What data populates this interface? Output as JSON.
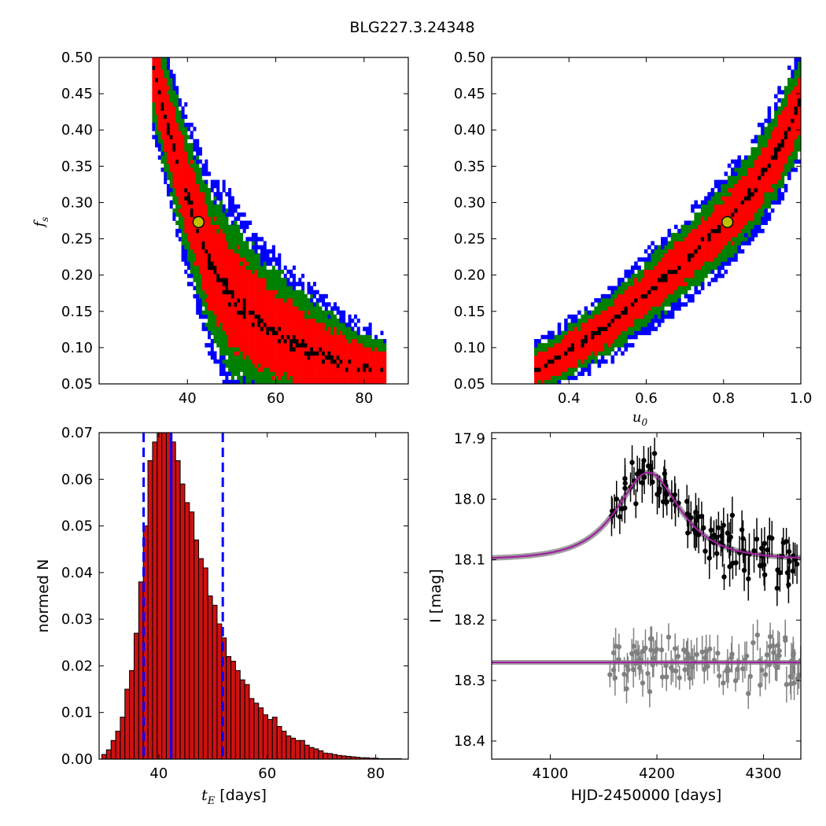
{
  "figure": {
    "title": "BLG227.3.24348"
  },
  "colors": {
    "blue": "#0000ff",
    "green": "#008000",
    "red": "#ff0000",
    "black": "#000000",
    "marker_fill": "#bfbf00",
    "bar_fill": "#cc1111",
    "model": "#a020a0",
    "band": "#888888",
    "gray_points": "#808080"
  },
  "chart_data": [
    {
      "id": "te-fs-density",
      "type": "heatmap",
      "xlabel": "",
      "ylabel": "f",
      "ylabel_sub": "s",
      "xlim": [
        20,
        90
      ],
      "ylim": [
        0.05,
        0.5
      ],
      "xticks": [
        40,
        60,
        80
      ],
      "yticks": [
        0.05,
        0.1,
        0.15,
        0.2,
        0.25,
        0.3,
        0.35,
        0.4,
        0.45,
        0.5
      ],
      "ytick_labels": [
        "0.05",
        "0.10",
        "0.15",
        "0.20",
        "0.25",
        "0.30",
        "0.35",
        "0.40",
        "0.45",
        "0.50"
      ],
      "levels": [
        "blue",
        "green",
        "red",
        "black"
      ],
      "ridge": [
        [
          32,
          0.49
        ],
        [
          35,
          0.42
        ],
        [
          38,
          0.35
        ],
        [
          41,
          0.29
        ],
        [
          45,
          0.22
        ],
        [
          50,
          0.17
        ],
        [
          57,
          0.13
        ],
        [
          66,
          0.1
        ],
        [
          77,
          0.075
        ],
        [
          85,
          0.07
        ]
      ],
      "best_fit": {
        "x": 42.5,
        "y": 0.273
      }
    },
    {
      "id": "u0-fs-density",
      "type": "heatmap",
      "xlabel": "u",
      "xlabel_sub": "0",
      "ylabel": "",
      "xlim": [
        0.2,
        1.0
      ],
      "ylim": [
        0.05,
        0.5
      ],
      "xticks": [
        0.4,
        0.6,
        0.8,
        1.0
      ],
      "xtick_labels": [
        "0.4",
        "0.6",
        "0.8",
        "1.0"
      ],
      "yticks": [
        0.05,
        0.1,
        0.15,
        0.2,
        0.25,
        0.3,
        0.35,
        0.4,
        0.45,
        0.5
      ],
      "ytick_labels": [
        "0.05",
        "0.10",
        "0.15",
        "0.20",
        "0.25",
        "0.30",
        "0.35",
        "0.40",
        "0.45",
        "0.50"
      ],
      "levels": [
        "blue",
        "green",
        "red",
        "black"
      ],
      "ridge": [
        [
          0.31,
          0.068
        ],
        [
          0.4,
          0.095
        ],
        [
          0.5,
          0.13
        ],
        [
          0.6,
          0.175
        ],
        [
          0.7,
          0.22
        ],
        [
          0.8,
          0.27
        ],
        [
          0.88,
          0.32
        ],
        [
          0.95,
          0.38
        ],
        [
          1.0,
          0.44
        ]
      ],
      "best_fit": {
        "x": 0.81,
        "y": 0.273
      }
    },
    {
      "id": "te-histogram",
      "type": "bar",
      "xlabel": "t",
      "xlabel_sub": "E",
      "xlabel_suffix": " [days]",
      "ylabel": "normed N",
      "xlim": [
        29,
        86
      ],
      "ylim": [
        0,
        0.07
      ],
      "xticks": [
        40,
        60,
        80
      ],
      "yticks": [
        0,
        0.01,
        0.02,
        0.03,
        0.04,
        0.05,
        0.06,
        0.07
      ],
      "ytick_labels": [
        "0.00",
        "0.01",
        "0.02",
        "0.03",
        "0.04",
        "0.05",
        "0.06",
        "0.07"
      ],
      "bin_start": 29.5,
      "bin_width": 0.85,
      "values": [
        0.001,
        0.002,
        0.004,
        0.006,
        0.009,
        0.015,
        0.019,
        0.027,
        0.038,
        0.05,
        0.064,
        0.068,
        0.075,
        0.076,
        0.07,
        0.068,
        0.064,
        0.059,
        0.055,
        0.053,
        0.047,
        0.043,
        0.041,
        0.035,
        0.033,
        0.029,
        0.026,
        0.022,
        0.021,
        0.019,
        0.017,
        0.016,
        0.013,
        0.012,
        0.011,
        0.0095,
        0.0085,
        0.009,
        0.007,
        0.006,
        0.005,
        0.0045,
        0.004,
        0.004,
        0.003,
        0.0025,
        0.0022,
        0.0018,
        0.0013,
        0.0012,
        0.001,
        0.0008,
        0.0007,
        0.0006,
        0.0005,
        0.0004,
        0.0003,
        0.0003,
        0.0002,
        0.0002,
        0.0001,
        0.0001,
        0.0001,
        0.0001,
        0.0001
      ],
      "median": 42.3,
      "interval": [
        37.2,
        51.8
      ]
    },
    {
      "id": "lightcurve",
      "type": "scatter",
      "xlabel": "HJD-2450000 [days]",
      "ylabel": "I [mag]",
      "xlim": [
        4045,
        4335
      ],
      "ylim": [
        18.43,
        17.89
      ],
      "xticks": [
        4100,
        4200,
        4300
      ],
      "yticks": [
        17.9,
        18.0,
        18.1,
        18.2,
        18.3,
        18.4
      ],
      "ytick_labels": [
        "17.9",
        "18.0",
        "18.1",
        "18.2",
        "18.3",
        "18.4"
      ],
      "model": {
        "t0": 4192,
        "tE": 42.3,
        "u0": 0.81,
        "fs": 0.273,
        "base_mag": 18.1
      },
      "gray_baseline_mag": 18.27,
      "observations_black": {
        "t_start": 4155,
        "t_end": 4335,
        "count": 110,
        "scatter_mag": 0.022,
        "error_mag": 0.028
      },
      "observations_gray": {
        "t_start": 4155,
        "t_end": 4335,
        "count": 110,
        "scatter_mag": 0.02,
        "error_mag": 0.025
      }
    }
  ]
}
